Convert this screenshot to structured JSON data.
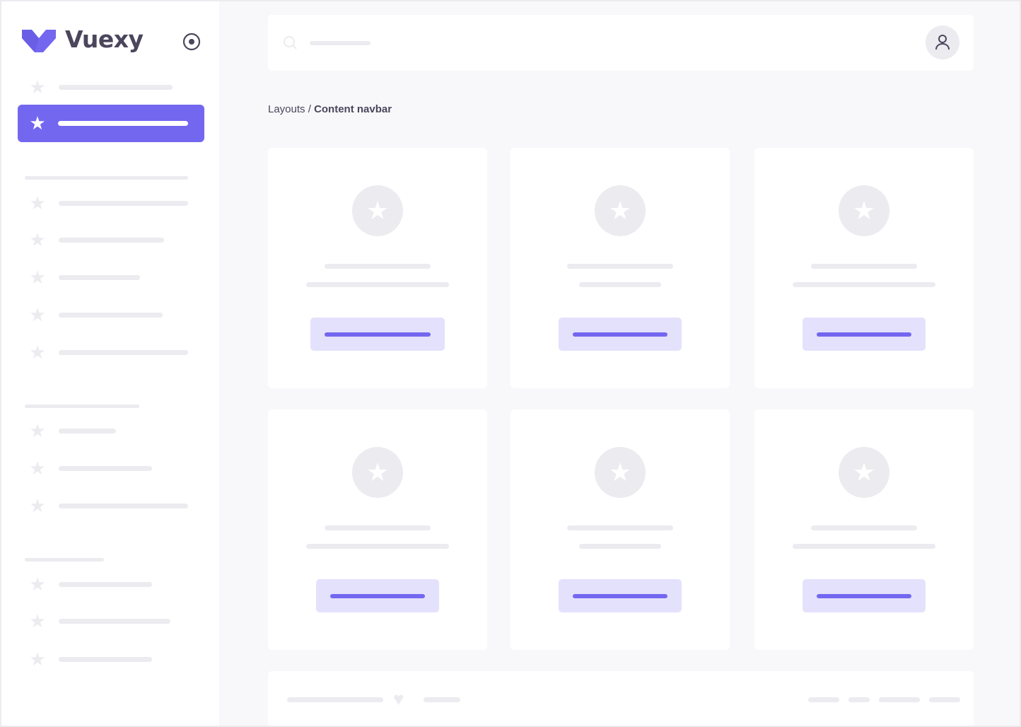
{
  "brand": {
    "name": "Vuexy",
    "logo_color": "#7367f0"
  },
  "breadcrumb": {
    "parent": "Layouts",
    "separator": " / ",
    "current": "Content navbar"
  },
  "icons": {
    "sidebar_toggle": "radio-circle-icon",
    "search": "search-icon",
    "user": "user-icon",
    "menu_item": "star-icon",
    "card": "star-icon",
    "footer": "heart-icon"
  },
  "colors": {
    "primary": "#7367f0",
    "primary_light": "#e4e1fc",
    "placeholder": "#ebebf0",
    "background": "#f8f8fa"
  }
}
